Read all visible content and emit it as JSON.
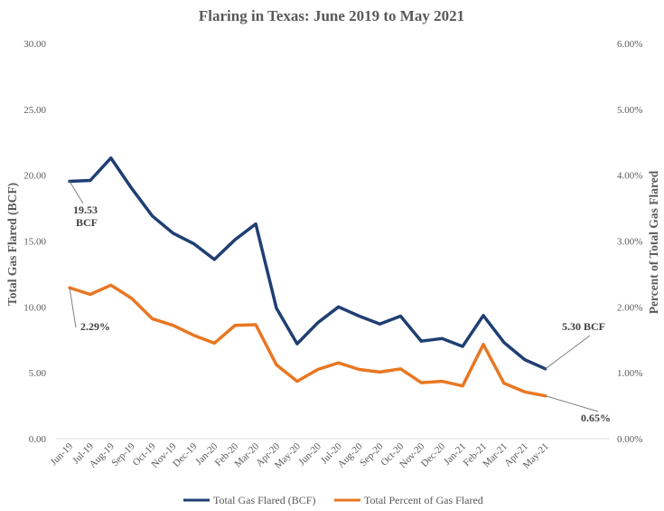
{
  "chart_data": {
    "type": "line",
    "title": "Flaring in Texas:  June 2019 to May 2021",
    "ylabel": "Total Gas Flared (BCF)",
    "y2label": "Percent of Total Gas Flared",
    "ylim": [
      0,
      30
    ],
    "y2lim": [
      0,
      0.06
    ],
    "yticks": [
      "0.00",
      "5.00",
      "10.00",
      "15.00",
      "20.00",
      "25.00",
      "30.00"
    ],
    "y2ticks": [
      "0.00%",
      "1.00%",
      "2.00%",
      "3.00%",
      "4.00%",
      "5.00%",
      "6.00%"
    ],
    "grid": false,
    "legend": "bottom",
    "categories": [
      "Jun-19",
      "Jul-19",
      "Aug-19",
      "Sep-19",
      "Oct-19",
      "Nov-19",
      "Dec-19",
      "Jan-20",
      "Feb-20",
      "Mar-20",
      "Apr-20",
      "May-20",
      "Jun-20",
      "Jul-20",
      "Aug-20",
      "Sep-20",
      "Oct-20",
      "Nov-20",
      "Dec-20",
      "Jan-21",
      "Feb-21",
      "Mar-21",
      "Apr-21",
      "May-21"
    ],
    "series": [
      {
        "name": "Total Gas Flared (BCF)",
        "axis": "left",
        "color": "#1F3F73",
        "values": [
          19.53,
          19.6,
          21.3,
          19.0,
          16.9,
          15.6,
          14.8,
          13.6,
          15.1,
          16.3,
          9.9,
          7.2,
          8.8,
          10.0,
          9.3,
          8.7,
          9.3,
          7.4,
          7.6,
          7.0,
          9.35,
          7.3,
          6.0,
          5.3
        ]
      },
      {
        "name": "Total Percent of Gas Flared",
        "axis": "right",
        "color": "#E87722",
        "values": [
          0.0229,
          0.0219,
          0.0233,
          0.0213,
          0.0182,
          0.0172,
          0.0157,
          0.0145,
          0.0172,
          0.0173,
          0.0112,
          0.0087,
          0.0105,
          0.0115,
          0.0105,
          0.0101,
          0.0106,
          0.0085,
          0.0087,
          0.008,
          0.0143,
          0.0084,
          0.0071,
          0.0065
        ]
      }
    ],
    "annotations": [
      {
        "series": 0,
        "index": 0,
        "line1": "19.53",
        "line2": "BCF"
      },
      {
        "series": 1,
        "index": 0,
        "line1": "2.29%",
        "line2": ""
      },
      {
        "series": 0,
        "index": 23,
        "line1": "5.30 BCF",
        "line2": ""
      },
      {
        "series": 1,
        "index": 23,
        "line1": "0.65%",
        "line2": ""
      }
    ]
  }
}
